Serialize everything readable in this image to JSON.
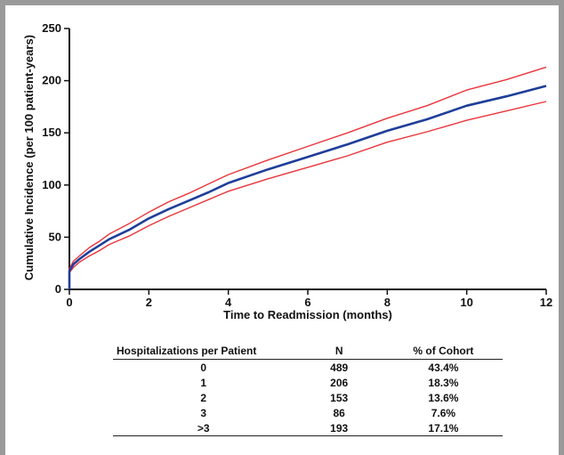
{
  "chart_data": {
    "type": "line",
    "xlabel": "Time to Readmission (months)",
    "ylabel": "Cumulative Incidence (per 100 patient-years)",
    "xlim": [
      0,
      12
    ],
    "ylim": [
      0,
      250
    ],
    "xticks": [
      0,
      2,
      4,
      6,
      8,
      10,
      12
    ],
    "yticks": [
      0,
      50,
      100,
      150,
      200,
      250
    ],
    "grid": false,
    "legend": "none",
    "series": [
      {
        "color": "#1f3e9a",
        "x": [
          0,
          0.1,
          0.25,
          0.5,
          0.75,
          1,
          1.5,
          2,
          2.5,
          3,
          3.5,
          4,
          5,
          6,
          7,
          8,
          9,
          10,
          11,
          12
        ],
        "y": [
          18,
          24,
          29,
          36,
          42,
          48,
          57,
          68,
          77,
          85,
          93,
          102,
          115,
          127,
          139,
          152,
          163,
          176,
          185,
          195
        ]
      },
      {
        "color": "#e8343a",
        "x": [
          0,
          0.1,
          0.25,
          0.5,
          0.75,
          1,
          1.5,
          2,
          2.5,
          3,
          3.5,
          4,
          5,
          6,
          7,
          8,
          9,
          10,
          11,
          12
        ],
        "y": [
          20,
          27,
          32,
          40,
          46,
          53,
          63,
          74,
          84,
          92,
          101,
          110,
          124,
          137,
          150,
          164,
          176,
          191,
          201,
          213
        ]
      },
      {
        "color": "#e8343a",
        "x": [
          0,
          0.1,
          0.25,
          0.5,
          0.75,
          1,
          1.5,
          2,
          2.5,
          3,
          3.5,
          4,
          5,
          6,
          7,
          8,
          9,
          10,
          11,
          12
        ],
        "y": [
          16,
          21,
          26,
          32,
          37,
          43,
          51,
          61,
          70,
          78,
          86,
          94,
          106,
          117,
          128,
          141,
          151,
          162,
          171,
          180
        ]
      }
    ]
  },
  "table": {
    "headers": [
      "Hospitalizations per Patient",
      "N",
      "% of Cohort"
    ],
    "rows": [
      [
        "0",
        "489",
        "43.4%"
      ],
      [
        "1",
        "206",
        "18.3%"
      ],
      [
        "2",
        "153",
        "13.6%"
      ],
      [
        "3",
        "86",
        "7.6%"
      ],
      [
        ">3",
        "193",
        "17.1%"
      ]
    ]
  }
}
